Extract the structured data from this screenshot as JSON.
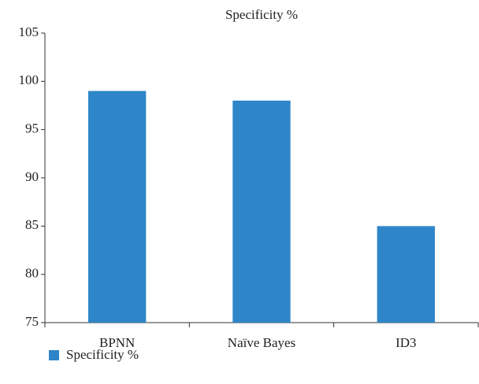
{
  "chart_data": {
    "type": "bar",
    "title": "Specificity %",
    "categories": [
      "BPNN",
      "Naïve Bayes",
      "ID3"
    ],
    "series": [
      {
        "name": "Specificity %",
        "color": "#2e86c8",
        "values": [
          99,
          98,
          85
        ]
      }
    ],
    "ylim": [
      75,
      105
    ],
    "yticks": [
      75,
      80,
      85,
      90,
      95,
      100,
      105
    ],
    "grid": false,
    "legend": "bottom-left"
  }
}
